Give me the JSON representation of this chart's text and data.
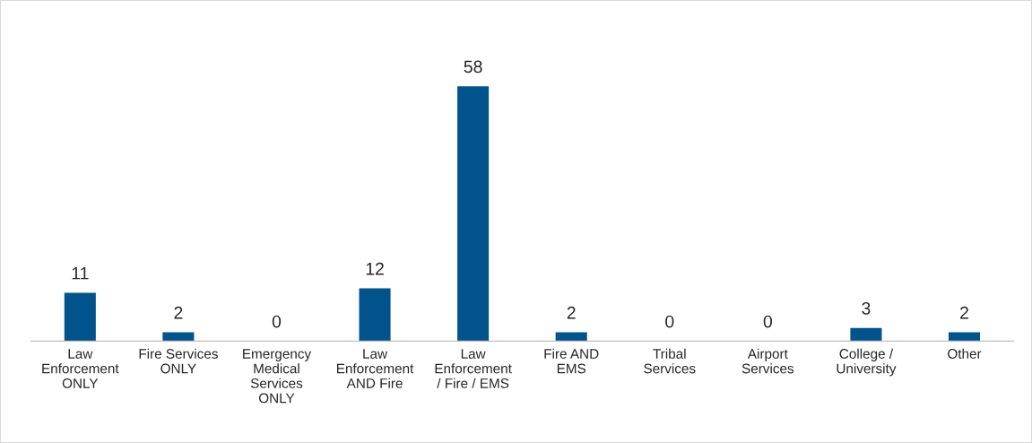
{
  "chart_data": {
    "type": "bar",
    "categories": [
      "Law\nEnforcement\nONLY",
      "Fire Services\nONLY",
      "Emergency\nMedical\nServices\nONLY",
      "Law\nEnforcement\nAND Fire",
      "Law\nEnforcement\n/ Fire / EMS",
      "Fire AND\nEMS",
      "Tribal\nServices",
      "Airport\nServices",
      "College /\nUniversity",
      "Other"
    ],
    "values": [
      11,
      2,
      0,
      12,
      58,
      2,
      0,
      0,
      3,
      2
    ],
    "color": "#00538b",
    "data_labels": true,
    "grid": false,
    "legend": false
  }
}
